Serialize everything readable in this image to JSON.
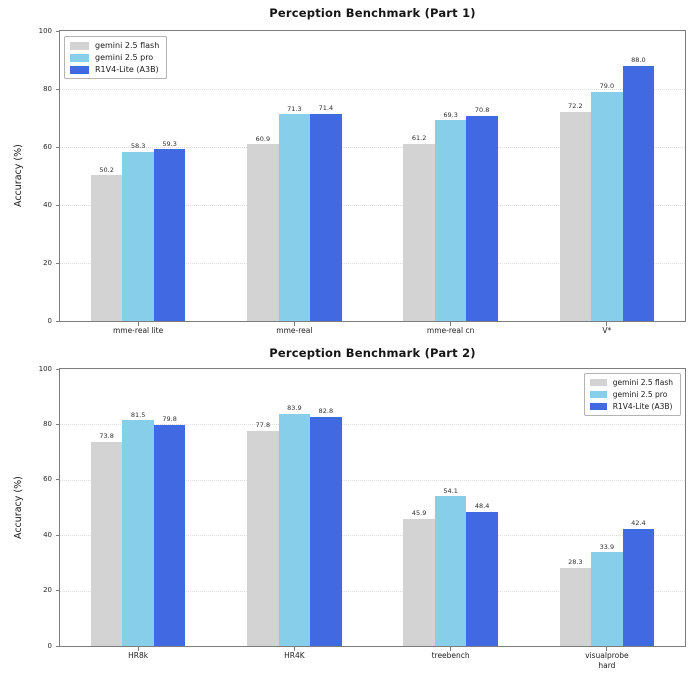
{
  "chart_data": [
    {
      "type": "bar",
      "title": "Perception Benchmark (Part 1)",
      "ylabel": "Accuracy (%)",
      "ylim": [
        0,
        100
      ],
      "yticks": [
        0,
        20,
        40,
        60,
        80,
        100
      ],
      "grid": true,
      "legend_position": "top-left",
      "categories": [
        "mme-real lite",
        "mme-real",
        "mme-real cn",
        "V*"
      ],
      "series": [
        {
          "name": "gemini 2.5 flash",
          "color": "#d3d3d3",
          "values": [
            50.2,
            60.9,
            61.2,
            72.2
          ]
        },
        {
          "name": "gemini 2.5 pro",
          "color": "#87ceeb",
          "values": [
            58.3,
            71.3,
            69.3,
            79.0
          ]
        },
        {
          "name": "R1V4-Lite (A3B)",
          "color": "#4169e1",
          "values": [
            59.3,
            71.4,
            70.8,
            88.0
          ]
        }
      ]
    },
    {
      "type": "bar",
      "title": "Perception Benchmark (Part 2)",
      "ylabel": "Accuracy (%)",
      "ylim": [
        0,
        100
      ],
      "yticks": [
        0,
        20,
        40,
        60,
        80,
        100
      ],
      "grid": true,
      "legend_position": "top-right",
      "categories": [
        "HR8k",
        "HR4K",
        "treebench",
        "visualprobe\nhard"
      ],
      "series": [
        {
          "name": "gemini 2.5 flash",
          "color": "#d3d3d3",
          "values": [
            73.8,
            77.8,
            45.9,
            28.3
          ]
        },
        {
          "name": "gemini 2.5 pro",
          "color": "#87ceeb",
          "values": [
            81.5,
            83.9,
            54.1,
            33.9
          ]
        },
        {
          "name": "R1V4-Lite (A3B)",
          "color": "#4169e1",
          "values": [
            79.8,
            82.8,
            48.4,
            42.4
          ]
        }
      ]
    }
  ]
}
